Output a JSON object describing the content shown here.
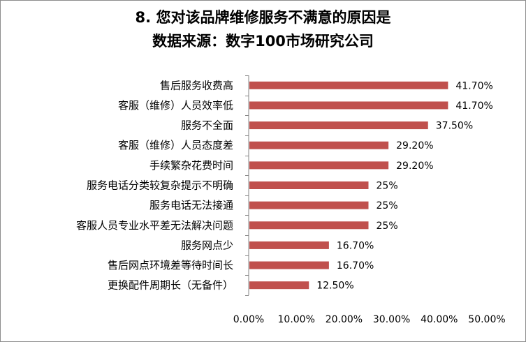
{
  "chart_data": {
    "type": "bar",
    "orientation": "horizontal",
    "title": "8. 您对该品牌维修服务不满意的原因是",
    "subtitle": "数据来源：数字100市场研究公司",
    "xlabel": "",
    "ylabel": "",
    "categories": [
      "售后服务收费高",
      "客服（维修）人员效率低",
      "服务不全面",
      "客服（维修）人员态度差",
      "手续繁杂花费时间",
      "服务电话分类较复杂提示不明确",
      "服务电话无法接通",
      "客服人员专业水平差无法解决问题",
      "服务网点少",
      "售后网点环境差等待时间长",
      "更换配件周期长（无备件）"
    ],
    "values": [
      41.7,
      41.7,
      37.5,
      29.2,
      29.2,
      25,
      25,
      25,
      16.7,
      16.7,
      12.5
    ],
    "data_labels": [
      "41.70%",
      "41.70%",
      "37.50%",
      "29.20%",
      "29.20%",
      "25%",
      "25%",
      "25%",
      "16.70%",
      "16.70%",
      "12.50%"
    ],
    "xlim": [
      0,
      50
    ],
    "x_ticks": [
      "0.00%",
      "10.00%",
      "20.00%",
      "30.00%",
      "40.00%",
      "50.00%"
    ],
    "grid": false,
    "legend": "none",
    "colors": {
      "bar": "#c0504d",
      "axis": "#868686"
    }
  }
}
